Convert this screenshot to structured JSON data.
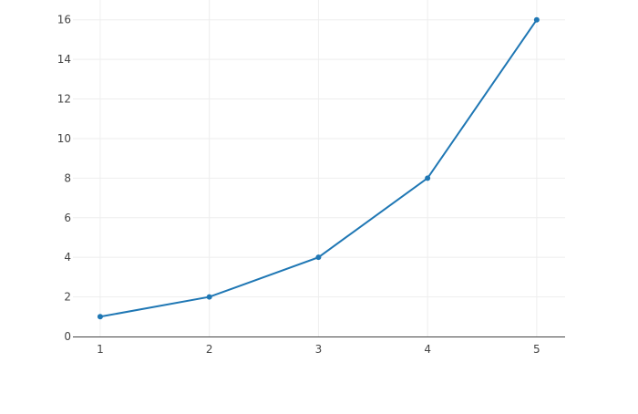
{
  "chart_data": {
    "type": "line",
    "title": "",
    "xlabel": "",
    "ylabel": "",
    "x": [
      1,
      2,
      3,
      4,
      5
    ],
    "series": [
      {
        "values": [
          1,
          2,
          4,
          8,
          16
        ],
        "color": "#1f77b4",
        "mode": "lines+markers"
      }
    ],
    "xlim": [
      0.75,
      5.26
    ],
    "ylim": [
      0,
      17
    ],
    "xticks": [
      1,
      2,
      3,
      4,
      5
    ],
    "yticks": [
      0,
      2,
      4,
      6,
      8,
      10,
      12,
      14,
      16
    ],
    "grid": true,
    "legend": "none"
  }
}
